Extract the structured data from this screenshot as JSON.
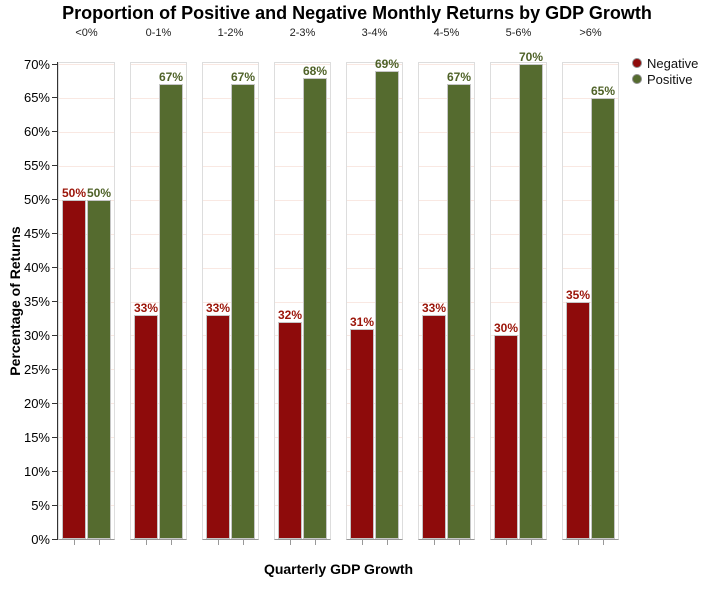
{
  "title": "Proportion of Positive and Negative Monthly Returns by GDP Growth",
  "y_axis": {
    "label": "Percentage of Returns",
    "tick_values": [
      0,
      5,
      10,
      15,
      20,
      25,
      30,
      35,
      40,
      45,
      50,
      55,
      60,
      65,
      70
    ],
    "tick_labels": [
      "0%",
      "5%",
      "10%",
      "15%",
      "20%",
      "25%",
      "30%",
      "35%",
      "40%",
      "45%",
      "50%",
      "55%",
      "60%",
      "65%",
      "70%"
    ]
  },
  "x_axis": {
    "label": "Quarterly GDP Growth"
  },
  "legend": {
    "items": [
      {
        "label": "Negative",
        "color": "#8E0B0B"
      },
      {
        "label": "Positive",
        "color": "#556B2F"
      }
    ]
  },
  "colors": {
    "negative_bar": "#8E0B0B",
    "positive_bar": "#556B2F",
    "negative_label": "#9B1408",
    "positive_label": "#4F6228",
    "gridline": "#F9E8E2",
    "panel_border": "#DDDDDD",
    "baseline": "#999999",
    "axis": "#333333",
    "bar_border": "#C6C6C6"
  },
  "chart_data": {
    "type": "bar",
    "title": "Proportion of Positive and Negative Monthly Returns by GDP Growth",
    "xlabel": "Quarterly GDP Growth",
    "ylabel": "Percentage of Returns",
    "ylim": [
      0,
      70
    ],
    "y_tick_step": 5,
    "grid": true,
    "legend_position": "top-right",
    "categories": [
      "<0%",
      "0-1%",
      "1-2%",
      "2-3%",
      "3-4%",
      "4-5%",
      "5-6%",
      ">6%"
    ],
    "series": [
      {
        "name": "Negative",
        "color": "#8E0B0B",
        "label_color": "#9B1408",
        "values": [
          50,
          33,
          33,
          32,
          31,
          33,
          30,
          35
        ],
        "labels": [
          "50%",
          "33%",
          "33%",
          "32%",
          "31%",
          "33%",
          "30%",
          "35%"
        ]
      },
      {
        "name": "Positive",
        "color": "#556B2F",
        "label_color": "#4F6228",
        "values": [
          50,
          67,
          67,
          68,
          69,
          67,
          70,
          65
        ],
        "labels": [
          "50%",
          "67%",
          "67%",
          "68%",
          "69%",
          "67%",
          "70%",
          "65%"
        ]
      }
    ]
  }
}
